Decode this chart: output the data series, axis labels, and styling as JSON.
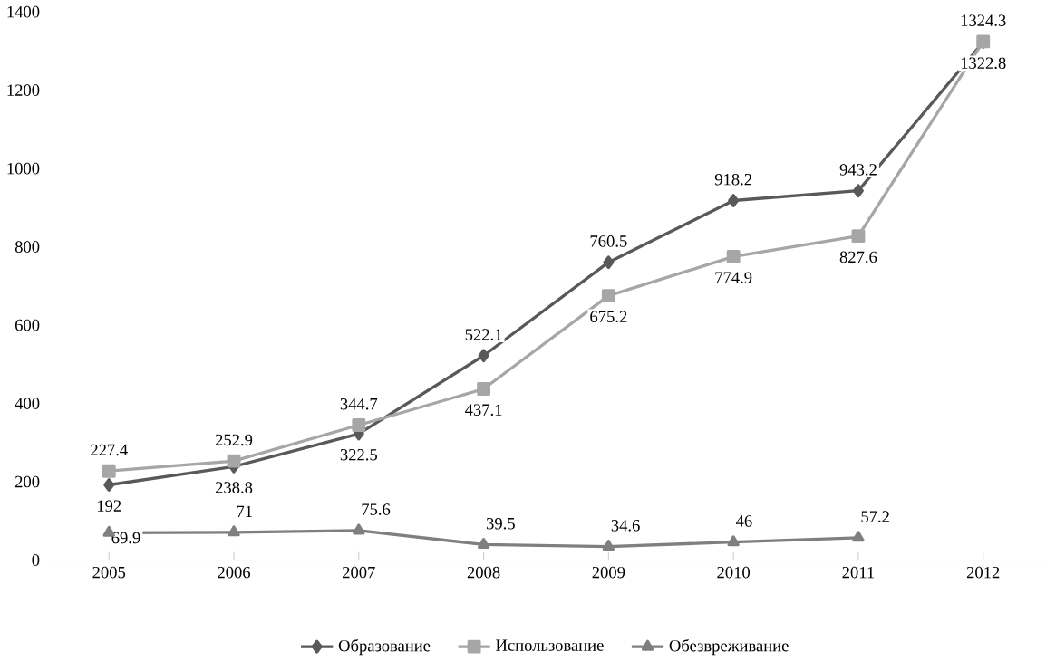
{
  "chart_data": {
    "type": "line",
    "categories": [
      "2005",
      "2006",
      "2007",
      "2008",
      "2009",
      "2010",
      "2011",
      "2012"
    ],
    "series": [
      {
        "name": "Образование",
        "color": "#595959",
        "marker": "diamond",
        "values": [
          192,
          238.8,
          322.5,
          522.1,
          760.5,
          918.2,
          943.2,
          1322.8
        ]
      },
      {
        "name": "Использование",
        "color": "#a6a6a6",
        "marker": "square",
        "values": [
          227.4,
          252.9,
          344.7,
          437.1,
          675.2,
          774.9,
          827.6,
          1324.3
        ]
      },
      {
        "name": "Обезвреживание",
        "color": "#7f7f7f",
        "marker": "triangle",
        "values": [
          69.9,
          71,
          75.6,
          39.5,
          34.6,
          46,
          57.2,
          null
        ]
      }
    ],
    "ylim": [
      0,
      1400
    ],
    "yticks": [
      0,
      200,
      400,
      600,
      800,
      1000,
      1200,
      1400
    ],
    "grid": false,
    "legend": "bottom",
    "data_labels": true
  }
}
